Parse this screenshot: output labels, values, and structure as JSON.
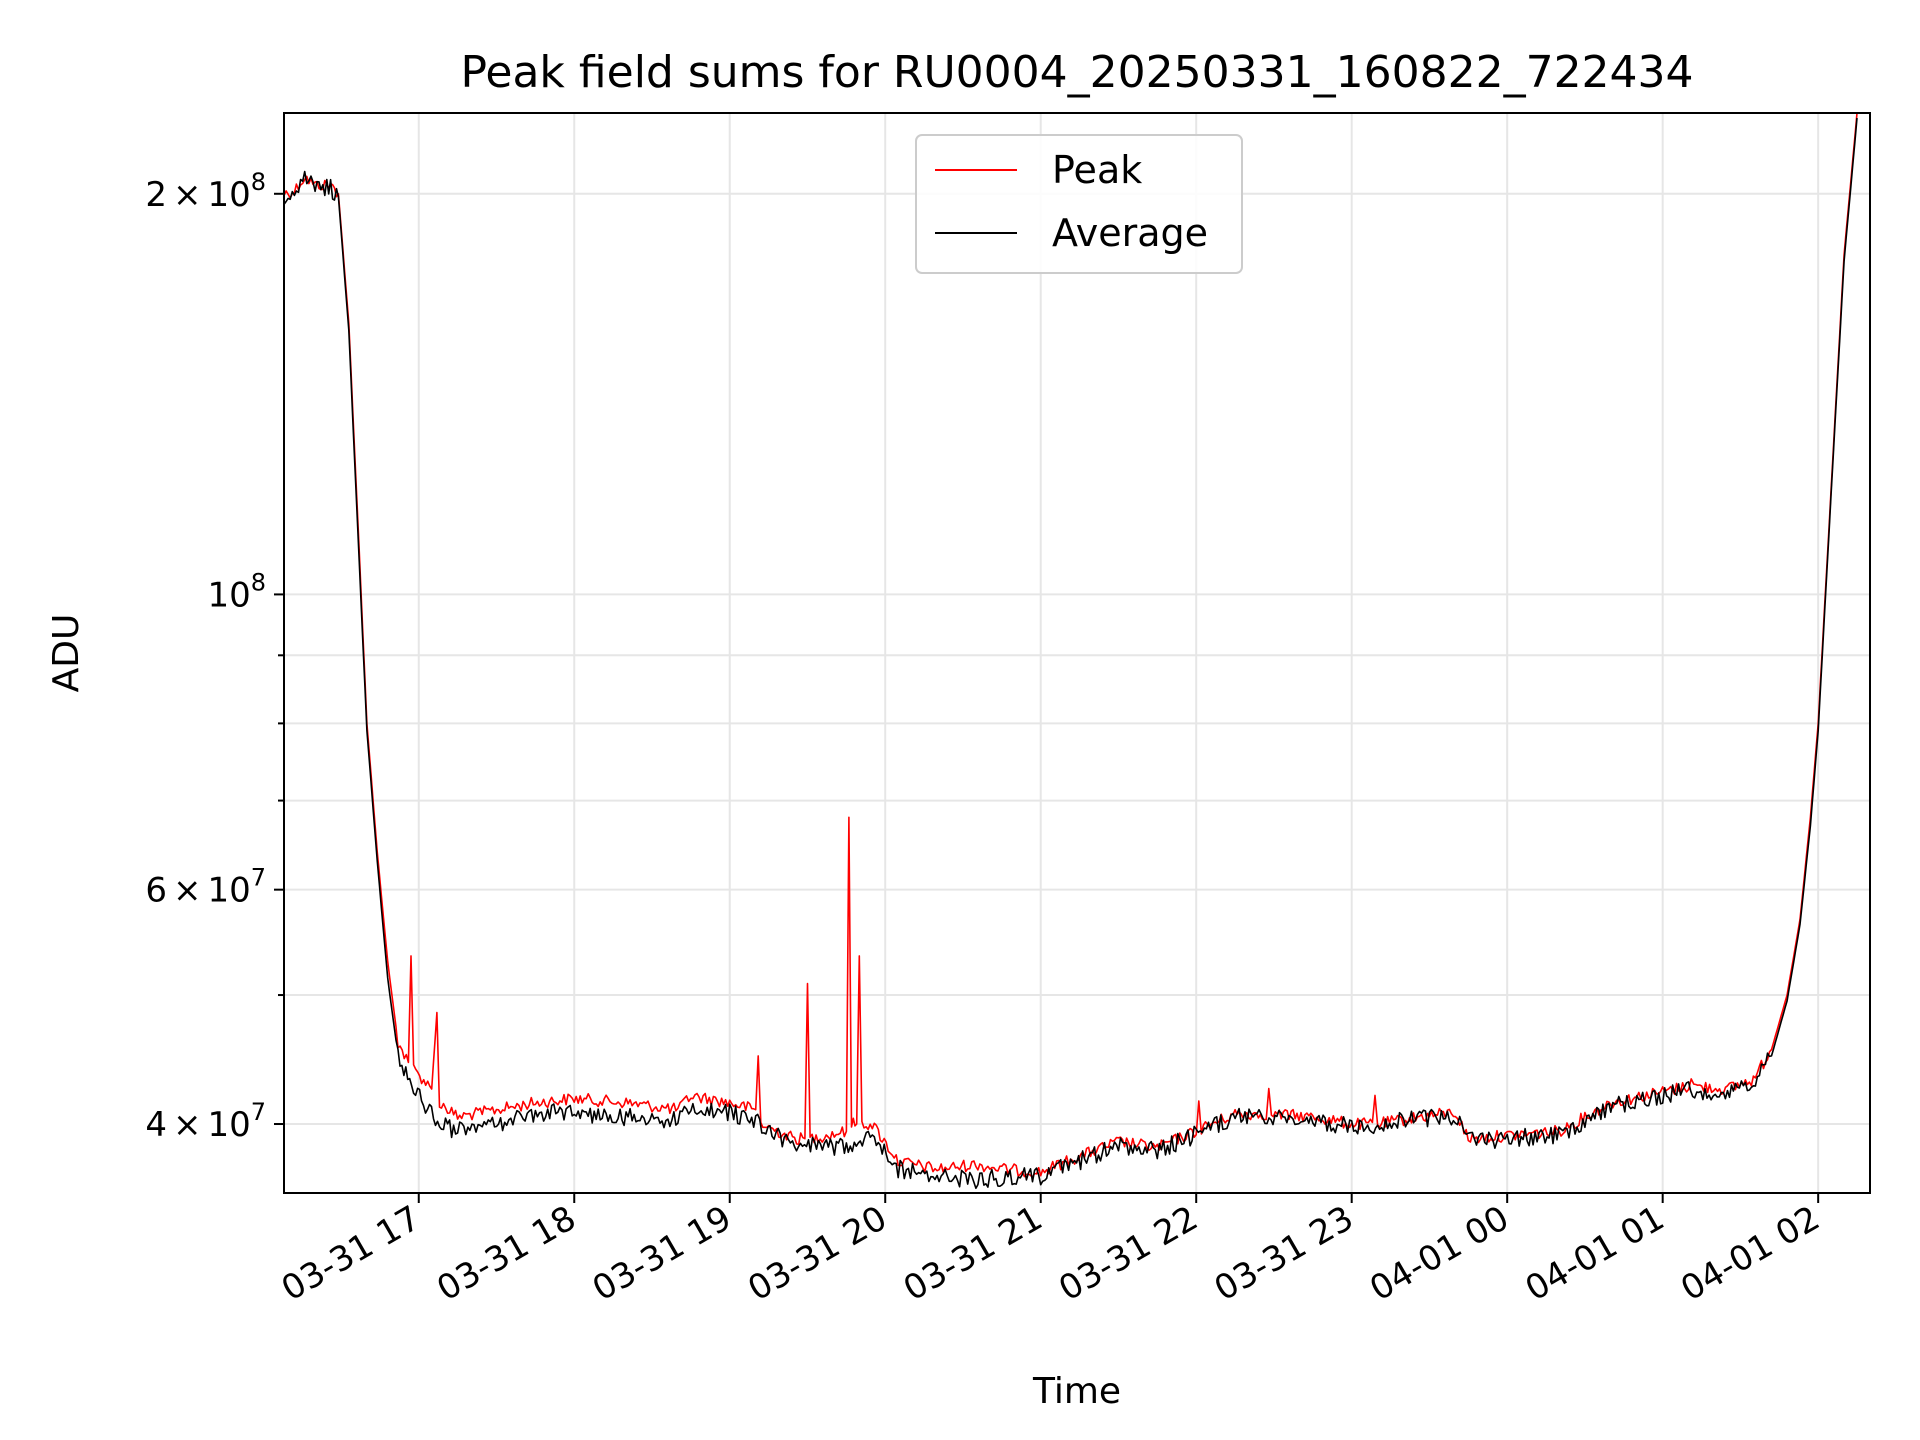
{
  "chart_data": {
    "type": "line",
    "title": "Peak field sums for RU0004_20250331_160822_722434",
    "xlabel": "Time",
    "ylabel": "ADU",
    "y_scale": "log",
    "ylim": [
      35500000,
      230000000
    ],
    "xlim": [
      "2025-03-31 16:08",
      "2025-04-01 02:20"
    ],
    "grid": true,
    "legend_position": "upper center",
    "x_tick_labels": [
      "03-31 17",
      "03-31 18",
      "03-31 19",
      "03-31 20",
      "03-31 21",
      "03-31 22",
      "03-31 23",
      "04-01 00",
      "04-01 01",
      "04-01 02"
    ],
    "x_ticks": [
      "2025-03-31 17:00",
      "2025-03-31 18:00",
      "2025-03-31 19:00",
      "2025-03-31 20:00",
      "2025-03-31 21:00",
      "2025-03-31 22:00",
      "2025-03-31 23:00",
      "2025-04-01 00:00",
      "2025-04-01 01:00",
      "2025-04-01 02:00"
    ],
    "y_major_ticks": [
      {
        "value": 40000000,
        "base": "4",
        "sup": "7"
      },
      {
        "value": 60000000,
        "base": "6",
        "sup": "7"
      },
      {
        "value": 100000000,
        "base": "",
        "sup": "8"
      },
      {
        "value": 200000000,
        "base": "2",
        "sup": "8"
      }
    ],
    "y_minor_ticks": [
      50000000,
      70000000,
      80000000,
      90000000
    ],
    "series": [
      {
        "name": "Peak",
        "color": "#ff0000",
        "points": [
          [
            "2025-03-31 16:08",
            200000000
          ],
          [
            "2025-03-31 16:12",
            201000000
          ],
          [
            "2025-03-31 16:16",
            206000000
          ],
          [
            "2025-03-31 16:20",
            203000000
          ],
          [
            "2025-03-31 16:26",
            203000000
          ],
          [
            "2025-03-31 16:29",
            200000000
          ],
          [
            "2025-03-31 16:33",
            160000000
          ],
          [
            "2025-03-31 16:37",
            108000000
          ],
          [
            "2025-03-31 16:40",
            80000000
          ],
          [
            "2025-03-31 16:44",
            64000000
          ],
          [
            "2025-03-31 16:48",
            53000000
          ],
          [
            "2025-03-31 16:52",
            46000000
          ],
          [
            "2025-03-31 16:56",
            44500000
          ],
          [
            "2025-03-31 16:57",
            53500000
          ],
          [
            "2025-03-31 16:58",
            44000000
          ],
          [
            "2025-03-31 17:05",
            42500000
          ],
          [
            "2025-03-31 17:07",
            48500000
          ],
          [
            "2025-03-31 17:08",
            41500000
          ],
          [
            "2025-03-31 17:15",
            40500000
          ],
          [
            "2025-03-31 17:30",
            41000000
          ],
          [
            "2025-03-31 17:45",
            41500000
          ],
          [
            "2025-03-31 18:00",
            41800000
          ],
          [
            "2025-03-31 18:20",
            41500000
          ],
          [
            "2025-03-31 18:40",
            41000000
          ],
          [
            "2025-03-31 18:45",
            42000000
          ],
          [
            "2025-03-31 19:00",
            41500000
          ],
          [
            "2025-03-31 19:10",
            41000000
          ],
          [
            "2025-03-31 19:11",
            45000000
          ],
          [
            "2025-03-31 19:12",
            40000000
          ],
          [
            "2025-03-31 19:25",
            39000000
          ],
          [
            "2025-03-31 19:29",
            39000000
          ],
          [
            "2025-03-31 19:30",
            51000000
          ],
          [
            "2025-03-31 19:31",
            39000000
          ],
          [
            "2025-03-31 19:45",
            39500000
          ],
          [
            "2025-03-31 19:46",
            68000000
          ],
          [
            "2025-03-31 19:47",
            40000000
          ],
          [
            "2025-03-31 19:49",
            40000000
          ],
          [
            "2025-03-31 19:50",
            53500000
          ],
          [
            "2025-03-31 19:51",
            40000000
          ],
          [
            "2025-03-31 19:55",
            40000000
          ],
          [
            "2025-03-31 20:05",
            37500000
          ],
          [
            "2025-03-31 20:20",
            37000000
          ],
          [
            "2025-03-31 20:35",
            37300000
          ],
          [
            "2025-03-31 20:45",
            37000000
          ],
          [
            "2025-03-31 21:00",
            36800000
          ],
          [
            "2025-03-31 21:10",
            37500000
          ],
          [
            "2025-03-31 21:30",
            38800000
          ],
          [
            "2025-03-31 21:45",
            38400000
          ],
          [
            "2025-03-31 22:00",
            39500000
          ],
          [
            "2025-03-31 22:01",
            41500000
          ],
          [
            "2025-03-31 22:02",
            39700000
          ],
          [
            "2025-03-31 22:15",
            40700000
          ],
          [
            "2025-03-31 22:27",
            40700000
          ],
          [
            "2025-03-31 22:28",
            42200000
          ],
          [
            "2025-03-31 22:29",
            40700000
          ],
          [
            "2025-03-31 22:45",
            40500000
          ],
          [
            "2025-03-31 23:00",
            40000000
          ],
          [
            "2025-03-31 23:08",
            40000000
          ],
          [
            "2025-03-31 23:09",
            42000000
          ],
          [
            "2025-03-31 23:10",
            40000000
          ],
          [
            "2025-03-31 23:30",
            40600000
          ],
          [
            "2025-03-31 23:40",
            40800000
          ],
          [
            "2025-03-31 23:45",
            39000000
          ],
          [
            "2025-04-01 00:00",
            39200000
          ],
          [
            "2025-04-01 00:20",
            39500000
          ],
          [
            "2025-04-01 00:40",
            41500000
          ],
          [
            "2025-04-01 01:00",
            42300000
          ],
          [
            "2025-04-01 01:10",
            42700000
          ],
          [
            "2025-04-01 01:11",
            43500000
          ],
          [
            "2025-04-01 01:12",
            42700000
          ],
          [
            "2025-04-01 01:25",
            42500000
          ],
          [
            "2025-04-01 01:35",
            43200000
          ],
          [
            "2025-04-01 01:42",
            45500000
          ],
          [
            "2025-04-01 01:48",
            50000000
          ],
          [
            "2025-04-01 01:53",
            57000000
          ],
          [
            "2025-04-01 01:57",
            68000000
          ],
          [
            "2025-04-01 02:00",
            80000000
          ],
          [
            "2025-04-01 02:05",
            120000000
          ],
          [
            "2025-04-01 02:10",
            180000000
          ],
          [
            "2025-04-01 02:15",
            230000000
          ]
        ]
      },
      {
        "name": "Average",
        "color": "#000000",
        "points": [
          [
            "2025-03-31 16:08",
            199000000
          ],
          [
            "2025-03-31 16:12",
            200000000
          ],
          [
            "2025-03-31 16:16",
            205000000
          ],
          [
            "2025-03-31 16:20",
            202000000
          ],
          [
            "2025-03-31 16:26",
            202000000
          ],
          [
            "2025-03-31 16:29",
            199000000
          ],
          [
            "2025-03-31 16:33",
            158000000
          ],
          [
            "2025-03-31 16:37",
            106000000
          ],
          [
            "2025-03-31 16:40",
            79000000
          ],
          [
            "2025-03-31 16:44",
            63000000
          ],
          [
            "2025-03-31 16:48",
            51500000
          ],
          [
            "2025-03-31 16:52",
            45000000
          ],
          [
            "2025-03-31 16:58",
            42500000
          ],
          [
            "2025-03-31 17:08",
            40000000
          ],
          [
            "2025-03-31 17:15",
            39500000
          ],
          [
            "2025-03-31 17:30",
            40000000
          ],
          [
            "2025-03-31 17:45",
            40800000
          ],
          [
            "2025-03-31 18:00",
            40800000
          ],
          [
            "2025-03-31 18:20",
            40500000
          ],
          [
            "2025-03-31 18:40",
            40200000
          ],
          [
            "2025-03-31 18:45",
            41200000
          ],
          [
            "2025-03-31 19:00",
            40800000
          ],
          [
            "2025-03-31 19:10",
            40200000
          ],
          [
            "2025-03-31 19:25",
            38500000
          ],
          [
            "2025-03-31 19:45",
            38500000
          ],
          [
            "2025-03-31 19:55",
            39500000
          ],
          [
            "2025-03-31 20:05",
            37000000
          ],
          [
            "2025-03-31 20:20",
            36500000
          ],
          [
            "2025-03-31 20:35",
            36300000
          ],
          [
            "2025-03-31 20:45",
            36500000
          ],
          [
            "2025-03-31 21:00",
            36500000
          ],
          [
            "2025-03-31 21:10",
            37200000
          ],
          [
            "2025-03-31 21:30",
            38500000
          ],
          [
            "2025-03-31 21:45",
            38200000
          ],
          [
            "2025-03-31 22:00",
            39300000
          ],
          [
            "2025-03-31 22:15",
            40500000
          ],
          [
            "2025-03-31 22:45",
            40300000
          ],
          [
            "2025-03-31 23:00",
            39800000
          ],
          [
            "2025-03-31 23:30",
            40400000
          ],
          [
            "2025-03-31 23:40",
            40500000
          ],
          [
            "2025-03-31 23:45",
            38800000
          ],
          [
            "2025-04-01 00:00",
            39000000
          ],
          [
            "2025-04-01 00:20",
            39300000
          ],
          [
            "2025-04-01 00:40",
            41200000
          ],
          [
            "2025-04-01 01:00",
            42000000
          ],
          [
            "2025-04-01 01:10",
            42400000
          ],
          [
            "2025-04-01 01:25",
            42200000
          ],
          [
            "2025-04-01 01:35",
            42900000
          ],
          [
            "2025-04-01 01:42",
            45000000
          ],
          [
            "2025-04-01 01:48",
            49500000
          ],
          [
            "2025-04-01 01:53",
            56500000
          ],
          [
            "2025-04-01 01:57",
            67000000
          ],
          [
            "2025-04-01 02:00",
            79000000
          ],
          [
            "2025-04-01 02:05",
            119000000
          ],
          [
            "2025-04-01 02:10",
            178000000
          ],
          [
            "2025-04-01 02:15",
            228000000
          ]
        ]
      }
    ]
  }
}
